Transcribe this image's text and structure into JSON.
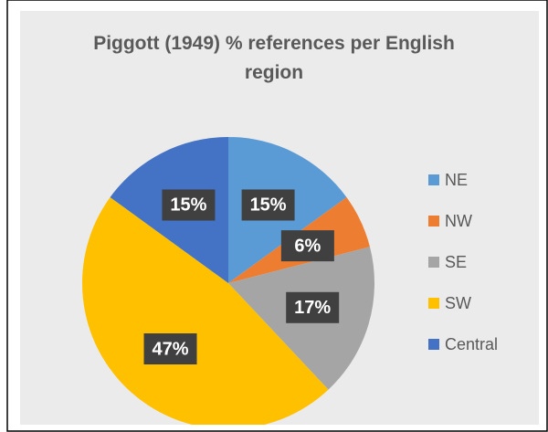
{
  "chart_data": {
    "type": "pie",
    "title": "Piggott (1949) % references per English region",
    "categories": [
      "NE",
      "NW",
      "SE",
      "SW",
      "Central"
    ],
    "values": [
      15,
      6,
      17,
      47,
      15
    ],
    "value_labels": [
      "15%",
      "6%",
      "17%",
      "47%",
      "15%"
    ],
    "colors": [
      "#5b9bd5",
      "#ed7d31",
      "#a5a5a5",
      "#ffc000",
      "#4472c4"
    ],
    "legend": "right"
  }
}
